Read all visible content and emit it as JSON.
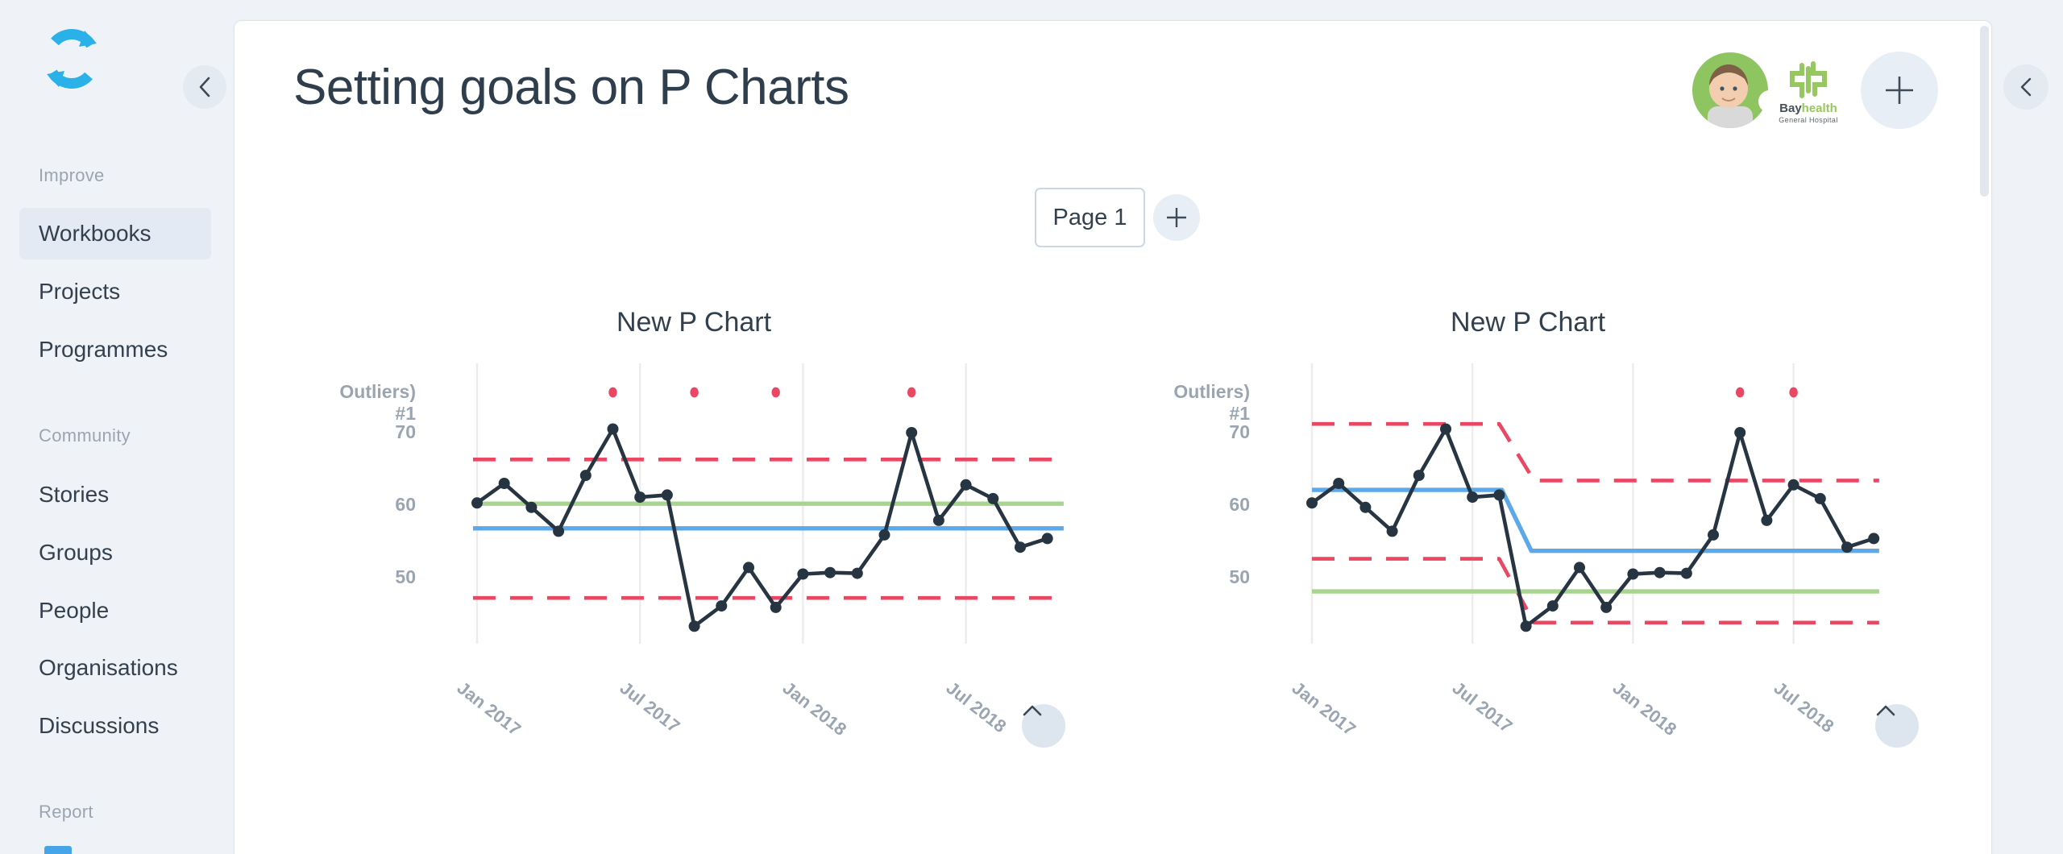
{
  "sidebar": {
    "sections": [
      {
        "label": "Improve",
        "items": [
          {
            "label": "Workbooks",
            "active": true
          },
          {
            "label": "Projects",
            "active": false
          },
          {
            "label": "Programmes",
            "active": false
          }
        ]
      },
      {
        "label": "Community",
        "items": [
          {
            "label": "Stories",
            "active": false
          },
          {
            "label": "Groups",
            "active": false
          },
          {
            "label": "People",
            "active": false
          },
          {
            "label": "Organisations",
            "active": false
          },
          {
            "label": "Discussions",
            "active": false
          }
        ]
      },
      {
        "label": "Report",
        "items": []
      }
    ]
  },
  "header": {
    "title": "Setting goals on P Charts",
    "org_logo": {
      "name_dark": "Bay",
      "name_green": "health",
      "subtitle": "General Hospital"
    }
  },
  "pager": {
    "active_tab": "Page 1"
  },
  "colors": {
    "accent_blue": "#29b1e8",
    "series_line": "#273442",
    "center_line": "#5ca8e9",
    "goal_line": "#a7d48e",
    "control_limit": "#ea4763",
    "gridline": "#ececec"
  },
  "chart_data": [
    {
      "type": "line",
      "title": "New P Chart",
      "outlier_row_label": "Outliers) #1",
      "y_ticks": [
        {
          "label": "70",
          "value": 70
        },
        {
          "label": "60",
          "value": 60
        },
        {
          "label": "50",
          "value": 50
        }
      ],
      "x_ticks": [
        {
          "label": "Jan 2017",
          "index": 0
        },
        {
          "label": "Jul 2017",
          "index": 6
        },
        {
          "label": "Jan 2018",
          "index": 12
        },
        {
          "label": "Jul 2018",
          "index": 18
        }
      ],
      "x_start": "Jan 2017",
      "x_interval": "month",
      "series": {
        "name": "P Chart values",
        "values": [
          60.3,
          63.0,
          59.7,
          56.4,
          64.1,
          70.5,
          61.1,
          61.4,
          43.3,
          46.1,
          51.4,
          45.9,
          50.5,
          50.7,
          50.6,
          55.9,
          70.0,
          57.9,
          62.8,
          60.9,
          54.2,
          55.4
        ]
      },
      "outlier_indices": [
        5,
        8,
        11,
        16
      ],
      "reference_lines": [
        {
          "name": "upper-control-limit",
          "style": "dashed",
          "color": "#ea4763",
          "vertices": [
            [
              -0.15,
              66.3
            ],
            [
              21.6,
              66.3
            ]
          ]
        },
        {
          "name": "lower-control-limit",
          "style": "dashed",
          "color": "#ea4763",
          "vertices": [
            [
              -0.15,
              47.2
            ],
            [
              21.6,
              47.2
            ]
          ]
        },
        {
          "name": "goal-line",
          "style": "solid",
          "color": "#a7d48e",
          "vertices": [
            [
              -0.15,
              60.2
            ],
            [
              21.6,
              60.2
            ]
          ]
        },
        {
          "name": "center-line",
          "style": "solid",
          "color": "#5ca8e9",
          "vertices": [
            [
              -0.15,
              56.8
            ],
            [
              21.6,
              56.8
            ]
          ]
        }
      ],
      "ylim": [
        42,
        77
      ]
    },
    {
      "type": "line",
      "title": "New P Chart",
      "outlier_row_label": "Outliers) #1",
      "y_ticks": [
        {
          "label": "70",
          "value": 70
        },
        {
          "label": "60",
          "value": 60
        },
        {
          "label": "50",
          "value": 50
        }
      ],
      "x_ticks": [
        {
          "label": "Jan 2017",
          "index": 0
        },
        {
          "label": "Jul 2017",
          "index": 6
        },
        {
          "label": "Jan 2018",
          "index": 12
        },
        {
          "label": "Jul 2018",
          "index": 18
        }
      ],
      "x_start": "Jan 2017",
      "x_interval": "month",
      "series": {
        "name": "P Chart values",
        "values": [
          60.3,
          63.0,
          59.7,
          56.4,
          64.1,
          70.5,
          61.1,
          61.4,
          43.3,
          46.1,
          51.4,
          45.9,
          50.5,
          50.7,
          50.6,
          55.9,
          70.0,
          57.9,
          62.8,
          60.9,
          54.2,
          55.4
        ]
      },
      "outlier_indices": [
        16,
        18
      ],
      "reference_lines": [
        {
          "name": "upper-control-limit",
          "style": "dashed",
          "color": "#ea4763",
          "vertices": [
            [
              0,
              71.2
            ],
            [
              7.0,
              71.2
            ],
            [
              8.3,
              63.4
            ],
            [
              21.2,
              63.4
            ]
          ]
        },
        {
          "name": "lower-control-limit",
          "style": "dashed",
          "color": "#ea4763",
          "vertices": [
            [
              0,
              52.6
            ],
            [
              7.0,
              52.6
            ],
            [
              8.3,
              43.8
            ],
            [
              21.2,
              43.8
            ]
          ]
        },
        {
          "name": "goal-line",
          "style": "solid",
          "color": "#a7d48e",
          "vertices": [
            [
              0,
              48.1
            ],
            [
              21.2,
              48.1
            ]
          ]
        },
        {
          "name": "center-line",
          "style": "solid",
          "color": "#5ca8e9",
          "vertices": [
            [
              0,
              62.1
            ],
            [
              7.1,
              62.1
            ],
            [
              8.2,
              53.7
            ],
            [
              21.2,
              53.7
            ]
          ]
        }
      ],
      "ylim": [
        42,
        77
      ]
    }
  ]
}
